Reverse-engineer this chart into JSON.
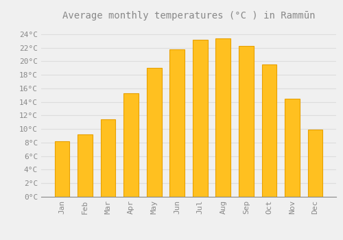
{
  "months": [
    "Jan",
    "Feb",
    "Mar",
    "Apr",
    "May",
    "Jun",
    "Jul",
    "Aug",
    "Sep",
    "Oct",
    "Nov",
    "Dec"
  ],
  "temperatures": [
    8.2,
    9.2,
    11.4,
    15.3,
    19.0,
    21.8,
    23.2,
    23.4,
    22.3,
    19.5,
    14.5,
    9.9
  ],
  "bar_color": "#FFC020",
  "bar_edge_color": "#E8A000",
  "background_color": "#F0F0F0",
  "grid_color": "#DDDDDD",
  "title": "Average monthly temperatures (°C ) in Rammūn",
  "title_fontsize": 10,
  "tick_fontsize": 8,
  "yticks": [
    0,
    2,
    4,
    6,
    8,
    10,
    12,
    14,
    16,
    18,
    20,
    22,
    24
  ],
  "ylim": [
    0,
    25.5
  ],
  "font_color": "#888888"
}
